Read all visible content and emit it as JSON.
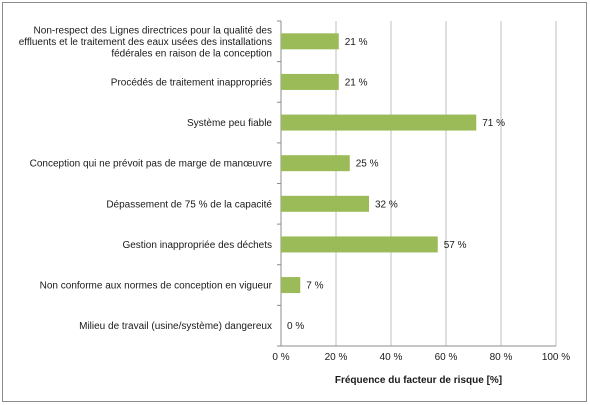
{
  "chart_data": {
    "type": "bar",
    "orientation": "horizontal",
    "title": "",
    "xlabel": "Fréquence du facteur de risque [%]",
    "ylabel": "",
    "xlim": [
      0,
      100
    ],
    "grid": true,
    "legend": "none",
    "bar_color": "#9bbb59",
    "categories": [
      [
        "Non-respect des Lignes directrices pour la qualité des",
        "effluents et le traitement des eaux usées des installations",
        "fédérales en raison de la conception"
      ],
      [
        "Procédés de traitement inappropriés"
      ],
      [
        "Système peu fiable"
      ],
      [
        "Conception qui ne prévoit pas de marge de manœuvre"
      ],
      [
        "Dépassement de 75 % de la capacité"
      ],
      [
        "Gestion inappropriée des déchets"
      ],
      [
        "Non conforme aux normes de conception en vigueur"
      ],
      [
        "Milieu de travail (usine/système) dangereux"
      ]
    ],
    "values": [
      21,
      21,
      71,
      25,
      32,
      57,
      7,
      0
    ],
    "data_labels": [
      "21 %",
      "21 %",
      "71 %",
      "25 %",
      "32 %",
      "57 %",
      "7 %",
      "0 %"
    ],
    "xticks": [
      0,
      20,
      40,
      60,
      80,
      100
    ],
    "xtick_labels": [
      "0 %",
      "20 %",
      "40 %",
      "60 %",
      "80 %",
      "100 %"
    ]
  }
}
